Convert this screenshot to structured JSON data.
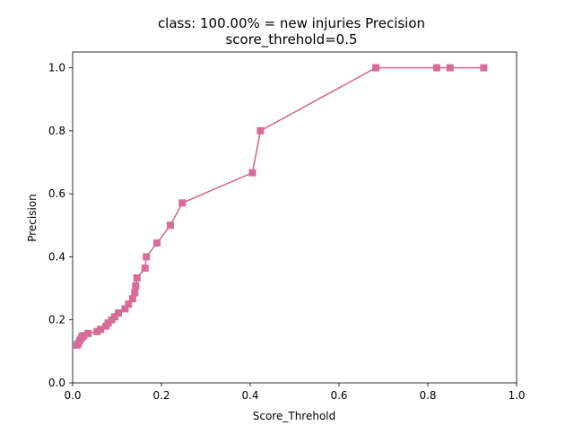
{
  "chart_data": {
    "type": "line",
    "title": "class: 100.00% = new injuries Precision",
    "subtitle": "score_threhold=0.5",
    "xlabel": "Score_Threhold",
    "ylabel": "Precision",
    "xlim": [
      0.0,
      1.0
    ],
    "ylim": [
      0.0,
      1.05
    ],
    "x_ticks": [
      0.0,
      0.2,
      0.4,
      0.6,
      0.8,
      1.0
    ],
    "x_tick_labels": [
      "0.0",
      "0.2",
      "0.4",
      "0.6",
      "0.8",
      "1.0"
    ],
    "y_ticks": [
      0.0,
      0.2,
      0.4,
      0.6,
      0.8,
      1.0
    ],
    "y_tick_labels": [
      "0.0",
      "0.2",
      "0.4",
      "0.6",
      "0.8",
      "1.0"
    ],
    "grid": false,
    "legend": "none",
    "marker": "square",
    "series_color": "#d66c97",
    "series": [
      {
        "x": [
          0.01,
          0.013,
          0.016,
          0.02,
          0.022,
          0.025,
          0.035,
          0.055,
          0.063,
          0.075,
          0.08,
          0.088,
          0.095,
          0.103,
          0.118,
          0.126,
          0.135,
          0.14,
          0.142,
          0.145,
          0.163,
          0.166,
          0.19,
          0.22,
          0.247,
          0.405,
          0.423,
          0.683,
          0.82,
          0.85,
          0.926
        ],
        "y": [
          0.12,
          0.125,
          0.135,
          0.143,
          0.148,
          0.15,
          0.157,
          0.163,
          0.17,
          0.18,
          0.19,
          0.2,
          0.21,
          0.222,
          0.235,
          0.25,
          0.267,
          0.286,
          0.308,
          0.333,
          0.364,
          0.4,
          0.444,
          0.5,
          0.571,
          0.667,
          0.8,
          1.0,
          1.0,
          1.0,
          1.0
        ]
      }
    ]
  }
}
